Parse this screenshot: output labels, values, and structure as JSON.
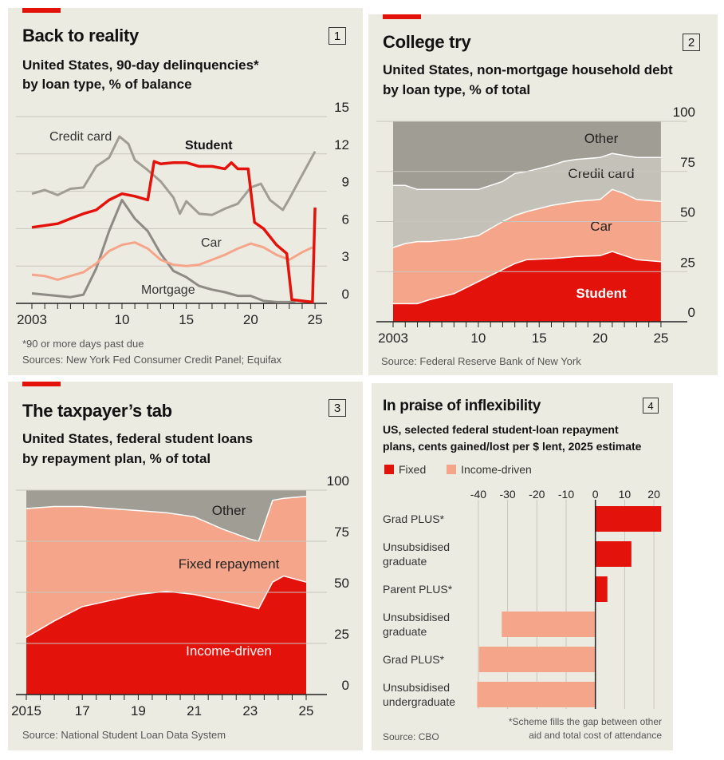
{
  "colors": {
    "red": "#e3120b",
    "salmon": "#f5a58a",
    "gray": "#a09e94",
    "lightgray": "#c4c2b8",
    "darkgray": "#8d8b84",
    "bg": "#ecebe2"
  },
  "panels": [
    {
      "number": "1",
      "title": "Back to reality",
      "subtitle_1": "United States, 90-day delinquencies*",
      "subtitle_2": "by loan type, % of balance",
      "footnote": "*90 or more days past due",
      "source": "Sources: New York Fed Consumer Credit Panel; Equifax"
    },
    {
      "number": "2",
      "title": "College try",
      "subtitle_1": "United States, non-mortgage household debt",
      "subtitle_2": "by loan type, % of total",
      "source": "Source: Federal Reserve Bank of New York"
    },
    {
      "number": "3",
      "title": "The taxpayer’s tab",
      "subtitle_1": "United States, federal student loans",
      "subtitle_2": "by repayment plan, % of total",
      "source": "Source: National Student Loan Data System"
    },
    {
      "number": "4",
      "title": "In praise of inflexibility",
      "subtitle_1": "US, selected federal student-loan repayment",
      "subtitle_2": "plans, cents gained/lost per $ lent, 2025 estimate",
      "footnote_1": "*Scheme fills the gap between other",
      "footnote_2": "aid and total cost of attendance",
      "source": "Source: CBO"
    }
  ],
  "chart_data": [
    {
      "type": "line",
      "ylim": [
        0,
        15
      ],
      "xlim": [
        2003,
        2025
      ],
      "yticks": [
        "0",
        "3",
        "6",
        "9",
        "12",
        "15"
      ],
      "xticks": [
        "2003",
        "10",
        "15",
        "20",
        "25"
      ],
      "series": [
        {
          "name": "Credit card",
          "x": [
            2003,
            2004,
            2005,
            2006,
            2007,
            2008,
            2009,
            2009.8,
            2010.5,
            2011,
            2012,
            2013,
            2014,
            2014.5,
            2015,
            2016,
            2017,
            2018,
            2019,
            2020,
            2020.8,
            2021.5,
            2022.5,
            2023,
            2024,
            2025
          ],
          "y": [
            8.8,
            9.1,
            8.7,
            9.2,
            9.3,
            11,
            11.7,
            13.4,
            12.8,
            11.5,
            10.7,
            9.8,
            8.5,
            7.2,
            8.2,
            7.2,
            7.1,
            7.6,
            8.0,
            9.3,
            9.6,
            8.3,
            7.5,
            8.4,
            10.3,
            12.2
          ]
        },
        {
          "name": "Mortgage",
          "x": [
            2003,
            2005,
            2006,
            2007,
            2008,
            2009,
            2010,
            2011,
            2012,
            2013,
            2014,
            2015,
            2016,
            2017,
            2018,
            2019,
            2020,
            2021,
            2022,
            2023,
            2023.5
          ],
          "y": [
            0.8,
            0.6,
            0.5,
            0.7,
            2.8,
            5.8,
            8.3,
            6.8,
            5.8,
            4.0,
            2.6,
            2.1,
            1.4,
            1.1,
            0.9,
            0.6,
            0.6,
            0.2,
            0.1,
            0.1,
            0.2
          ]
        },
        {
          "name": "Car",
          "x": [
            2003,
            2004,
            2005,
            2006,
            2007,
            2008,
            2009,
            2010,
            2011,
            2012,
            2013,
            2014,
            2015,
            2016,
            2017,
            2018,
            2019,
            2020,
            2021,
            2022,
            2023,
            2024,
            2024.8
          ],
          "y": [
            2.3,
            2.2,
            1.9,
            2.2,
            2.5,
            3.2,
            4.2,
            4.7,
            4.9,
            4.4,
            3.5,
            3.1,
            3.0,
            3.1,
            3.5,
            3.9,
            4.4,
            4.8,
            4.5,
            3.9,
            3.5,
            4.1,
            4.5
          ]
        },
        {
          "name": "Student",
          "x": [
            2003,
            2005,
            2006,
            2007,
            2008,
            2009,
            2010,
            2011,
            2012,
            2012.5,
            2013,
            2014,
            2015,
            2016,
            2017,
            2018,
            2018.5,
            2019,
            2019.8,
            2020.3,
            2021,
            2022,
            2022.8,
            2023.2,
            2024,
            2024.8,
            2025
          ],
          "y": [
            6.1,
            6.4,
            6.8,
            7.2,
            7.5,
            8.3,
            8.8,
            8.6,
            8.3,
            11.4,
            11.2,
            11.3,
            11.3,
            11,
            11.0,
            10.8,
            11.3,
            10.8,
            10.8,
            6.5,
            6.0,
            4.7,
            4.0,
            0.3,
            0.2,
            0.1,
            7.7
          ]
        }
      ]
    },
    {
      "type": "area",
      "stacked": true,
      "ylim": [
        0,
        100
      ],
      "xlim": [
        2003,
        2025
      ],
      "yticks": [
        "0",
        "25",
        "50",
        "75",
        "100"
      ],
      "xticks": [
        "2003",
        "10",
        "15",
        "20",
        "25"
      ],
      "x": [
        2003,
        2004,
        2005,
        2006,
        2008,
        2010,
        2012,
        2013,
        2014,
        2016,
        2017,
        2018,
        2020,
        2021,
        2022,
        2023,
        2025
      ],
      "series": [
        {
          "name": "Student",
          "cumulative": [
            9,
            9,
            9,
            11,
            14,
            20,
            26,
            29,
            31,
            31.5,
            32,
            32.5,
            33,
            35,
            33,
            31,
            30
          ]
        },
        {
          "name": "Car",
          "cumulative": [
            37,
            39,
            40,
            40,
            41,
            43,
            50,
            53,
            55,
            58,
            59,
            60,
            61,
            66,
            64,
            61,
            60
          ]
        },
        {
          "name": "Credit card",
          "cumulative": [
            68,
            68,
            66,
            66,
            66,
            66,
            70,
            74,
            75,
            78,
            80,
            81,
            82,
            84,
            83,
            82,
            82
          ]
        },
        {
          "name": "Other",
          "cumulative": [
            100,
            100,
            100,
            100,
            100,
            100,
            100,
            100,
            100,
            100,
            100,
            100,
            100,
            100,
            100,
            100,
            100
          ]
        }
      ]
    },
    {
      "type": "area",
      "stacked": true,
      "ylim": [
        0,
        100
      ],
      "xlim": [
        2015,
        2025
      ],
      "yticks": [
        "0",
        "25",
        "50",
        "75",
        "100"
      ],
      "xticks": [
        "2015",
        "17",
        "19",
        "21",
        "23",
        "25"
      ],
      "x": [
        2015,
        2016,
        2017,
        2018,
        2019,
        2020,
        2021,
        2022,
        2023,
        2023.3,
        2023.8,
        2024.2,
        2025
      ],
      "series": [
        {
          "name": "Income-driven",
          "cumulative": [
            28,
            36,
            43,
            46,
            49,
            50.5,
            49,
            46,
            43,
            42,
            55,
            58,
            55
          ]
        },
        {
          "name": "Fixed repayment",
          "cumulative": [
            91,
            92,
            92,
            91,
            90,
            89,
            87,
            81,
            76,
            75,
            95,
            96,
            97
          ]
        },
        {
          "name": "Other",
          "cumulative": [
            100,
            100,
            100,
            100,
            100,
            100,
            100,
            100,
            100,
            100,
            100,
            100,
            100
          ]
        }
      ]
    },
    {
      "type": "bar",
      "orientation": "horizontal",
      "xlim": [
        -45,
        25
      ],
      "xticks": [
        "-40",
        "-30",
        "-20",
        "-10",
        "0",
        "10",
        "20"
      ],
      "legend": [
        "Fixed",
        "Income-driven"
      ],
      "categories": [
        "Grad PLUS*",
        "Unsubsidised graduate",
        "Parent PLUS*",
        "Unsubsidised graduate",
        "Grad PLUS*",
        "Unsubsidised undergraduate"
      ],
      "category_lines": [
        [
          "Grad PLUS*"
        ],
        [
          "Unsubsidised",
          "graduate"
        ],
        [
          "Parent PLUS*"
        ],
        [
          "Unsubsidised",
          "graduate"
        ],
        [
          "Grad PLUS*"
        ],
        [
          "Unsubsidised",
          "undergraduate"
        ]
      ],
      "groups": [
        "Fixed",
        "Fixed",
        "Fixed",
        "Income-driven",
        "Income-driven",
        "Income-driven"
      ],
      "values": [
        22.5,
        12.3,
        4.1,
        -32,
        -39.8,
        -40.4
      ]
    }
  ]
}
